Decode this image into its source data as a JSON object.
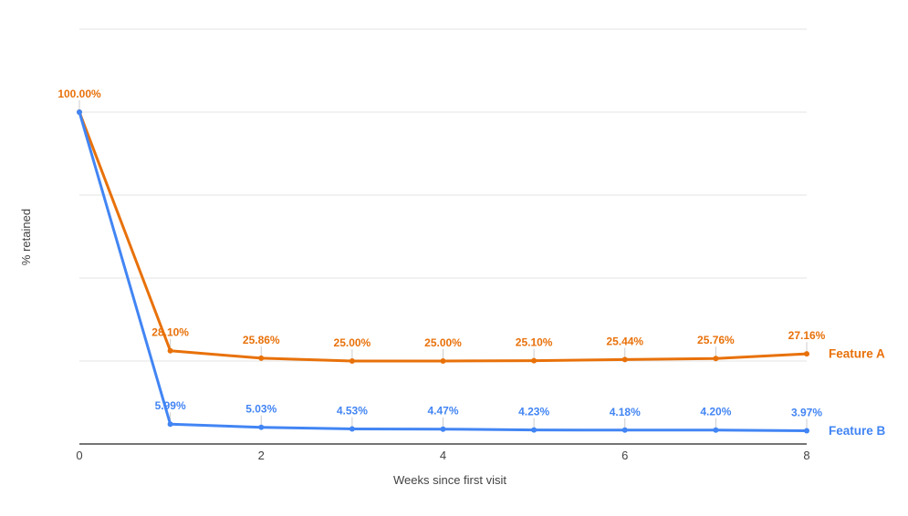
{
  "chart_data": {
    "type": "line",
    "title": "",
    "xlabel": "Weeks since first visit",
    "ylabel": "% retained",
    "x": [
      0,
      1,
      2,
      3,
      4,
      5,
      6,
      7,
      8
    ],
    "xtick_values": [
      0,
      2,
      4,
      6,
      8
    ],
    "xtick_labels": [
      "0",
      "2",
      "4",
      "6",
      "8"
    ],
    "ylim": [
      0,
      125
    ],
    "gridline_values": [
      25,
      50,
      75,
      100,
      125
    ],
    "grid": "horizontal-only",
    "legend_position": "right-of-line-ends",
    "series": [
      {
        "name": "Feature A",
        "color": "#E8710A",
        "values": [
          100.0,
          28.1,
          25.86,
          25.0,
          25.0,
          25.1,
          25.44,
          25.76,
          27.16
        ],
        "labels": [
          "100.00%",
          "28.10%",
          "25.86%",
          "25.00%",
          "25.00%",
          "25.10%",
          "25.44%",
          "25.76%",
          "27.16%"
        ]
      },
      {
        "name": "Feature B",
        "color": "#4285F4",
        "values": [
          100.0,
          5.99,
          5.03,
          4.53,
          4.47,
          4.23,
          4.18,
          4.2,
          3.97
        ],
        "labels": [
          "",
          "5.99%",
          "5.03%",
          "4.53%",
          "4.47%",
          "4.23%",
          "4.18%",
          "4.20%",
          "3.97%"
        ]
      }
    ],
    "colors": {
      "gridline": "#e3e3e3",
      "axis_line": "#212121",
      "tick_label": "#424242",
      "axis_title": "#424242",
      "leader_line": "#cccccc"
    }
  }
}
